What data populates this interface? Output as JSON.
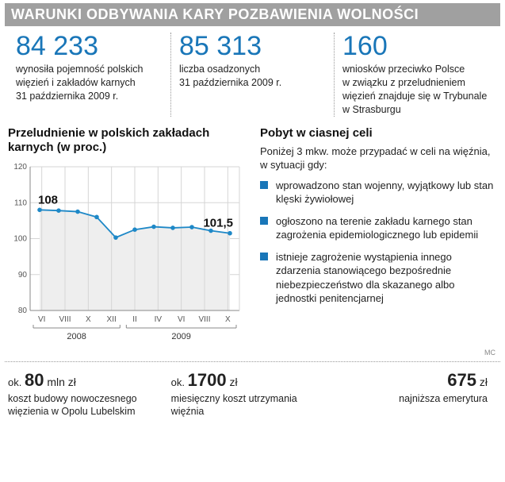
{
  "header": "WARUNKI ODBYWANIA KARY POZBAWIENIA WOLNOŚCI",
  "stats": [
    {
      "num": "84 233",
      "desc": "wynosiła pojemność polskich więzień i zakładów karnych 31 października 2009 r."
    },
    {
      "num": "85 313",
      "desc": "liczba osadzonych 31 października 2009 r."
    },
    {
      "num": "160",
      "desc": "wniosków przeciwko Polsce w związku z przeludnieniem więzień znajduje się w Trybunale w Strasburgu"
    }
  ],
  "chart": {
    "title": "Przeludnienie w polskich zakładach karnych (w proc.)",
    "type": "line",
    "ylim": [
      80,
      120
    ],
    "ytick_step": 10,
    "yticks": [
      80,
      90,
      100,
      110,
      120
    ],
    "x_labels": [
      "VI",
      "VIII",
      "X",
      "XII",
      "II",
      "IV",
      "VI",
      "VIII",
      "X"
    ],
    "values": [
      108.0,
      107.8,
      107.5,
      106.0,
      100.3,
      102.5,
      103.3,
      103.0,
      103.2,
      102.2,
      101.5
    ],
    "start_annot": "108",
    "end_annot": "101,5",
    "year_groups": [
      {
        "label": "2008",
        "span": 4
      },
      {
        "label": "2009",
        "span": 5
      }
    ],
    "line_color": "#1e88c7",
    "point_color": "#1e88c7",
    "fill_color": "#eeeeee",
    "grid_color": "#d5d5d5",
    "axis_color": "#888888",
    "background_color": "#ffffff",
    "annot_color": "#111111",
    "annot_fontsize": 15,
    "annot_weight": "bold",
    "tick_fontsize": 10,
    "line_width": 1.8,
    "point_radius": 2.8
  },
  "right": {
    "title": "Pobyt w ciasnej celi",
    "sub": "Poniżej 3 mkw. może przypadać w celi na więźnia, w sytuacji gdy:",
    "bullets": [
      "wprowadzono stan wojenny, wyjątkowy lub stan klęski żywiołowej",
      "ogłoszono na terenie zakładu karnego stan zagrożenia epidemiologicznego lub epidemii",
      "istnieje zagrożenie wystąpienia innego zdarzenia stanowiącego bezpośrednie niebezpieczeństwo dla skazanego albo jednostki penitencjarnej"
    ]
  },
  "signature": "MC",
  "bottom": [
    {
      "prefix": "ok. ",
      "num": "80",
      "unit": " mln zł",
      "desc": "koszt budowy nowoczesnego więzienia w Opolu Lubelskim",
      "align": "left"
    },
    {
      "prefix": "ok. ",
      "num": "1700",
      "unit": " zł",
      "desc": "miesięczny koszt utrzymania więźnia",
      "align": "left"
    },
    {
      "prefix": "",
      "num": "675",
      "unit": " zł",
      "desc": "najniższa emerytura",
      "align": "right"
    }
  ]
}
